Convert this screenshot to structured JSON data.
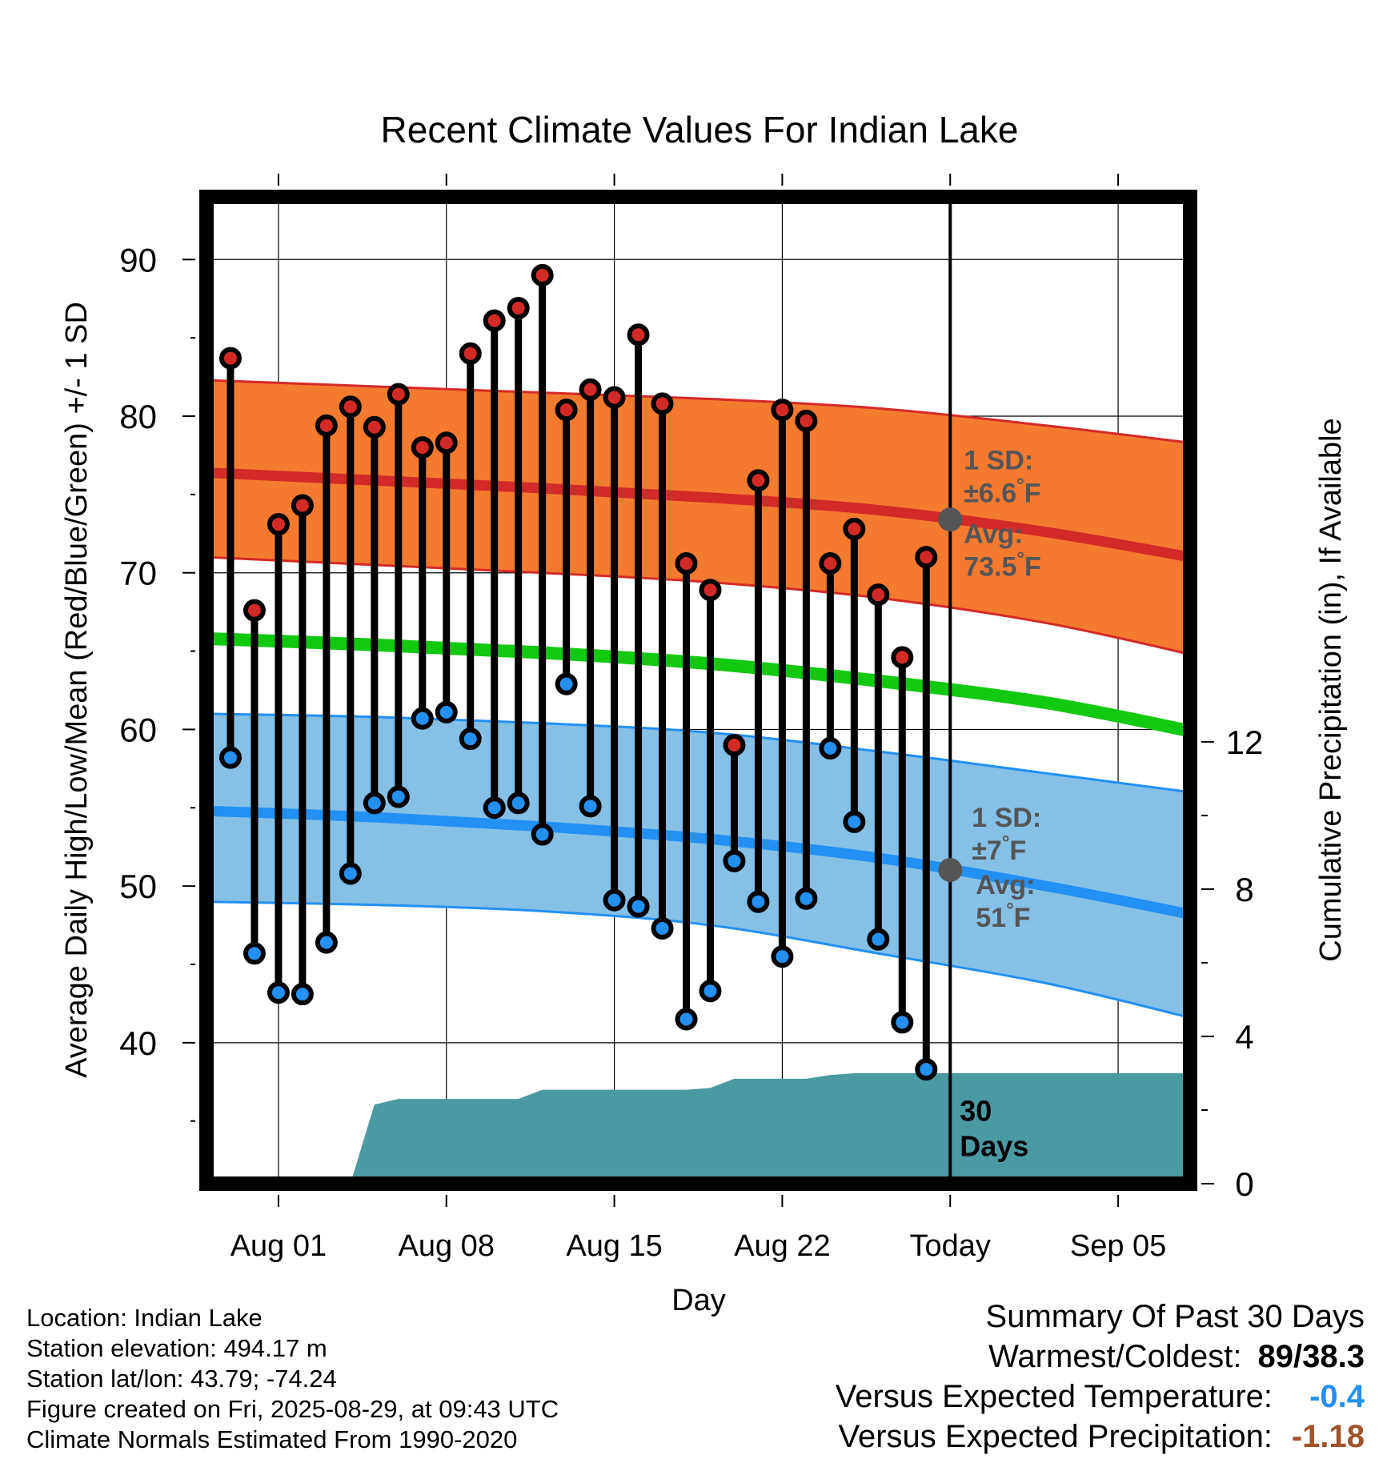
{
  "chart_data": {
    "type": "line",
    "title": "Recent Climate Values For Indian Lake",
    "xlabel": "Day",
    "ylabel": "Average Daily High/Low/Mean (Red/Blue/Green) +/- 1 SD",
    "y2label": "Cumulative Precipitation (in), If Available",
    "ylim": [
      31,
      94
    ],
    "y2lim": [
      0,
      26.8
    ],
    "xlim": [
      "2025-07-29",
      "2025-09-08"
    ],
    "yticks": [
      "40",
      "50",
      "60",
      "70",
      "80",
      "90"
    ],
    "y2ticks": [
      "0",
      "4",
      "8",
      "12"
    ],
    "xticks": [
      {
        "date": "2025-08-01",
        "label": "Aug 01"
      },
      {
        "date": "2025-08-08",
        "label": "Aug 08"
      },
      {
        "date": "2025-08-15",
        "label": "Aug 15"
      },
      {
        "date": "2025-08-22",
        "label": "Aug 22"
      },
      {
        "date": "2025-08-29",
        "label": "Today"
      },
      {
        "date": "2025-09-05",
        "label": "Sep 05"
      }
    ],
    "grid": true,
    "today": "2025-08-29",
    "dates": [
      "2025-07-30",
      "2025-07-31",
      "2025-08-01",
      "2025-08-02",
      "2025-08-03",
      "2025-08-04",
      "2025-08-05",
      "2025-08-06",
      "2025-08-07",
      "2025-08-08",
      "2025-08-09",
      "2025-08-10",
      "2025-08-11",
      "2025-08-12",
      "2025-08-13",
      "2025-08-14",
      "2025-08-15",
      "2025-08-16",
      "2025-08-17",
      "2025-08-18",
      "2025-08-19",
      "2025-08-20",
      "2025-08-21",
      "2025-08-22",
      "2025-08-23",
      "2025-08-24",
      "2025-08-25",
      "2025-08-26",
      "2025-08-27",
      "2025-08-28"
    ],
    "highs": [
      83.7,
      67.6,
      73.1,
      74.3,
      79.4,
      80.6,
      79.3,
      81.4,
      78.0,
      78.3,
      84.0,
      86.1,
      86.9,
      89.0,
      80.4,
      81.7,
      81.2,
      85.2,
      80.8,
      70.6,
      68.9,
      59.0,
      75.9,
      80.4,
      79.7,
      70.6,
      72.8,
      68.6,
      64.6,
      71.0
    ],
    "lows": [
      58.2,
      45.7,
      43.2,
      43.1,
      46.4,
      50.8,
      55.3,
      55.7,
      60.7,
      61.1,
      59.4,
      55.0,
      55.3,
      53.3,
      62.9,
      55.1,
      49.1,
      48.7,
      47.3,
      41.5,
      43.3,
      51.6,
      49.0,
      45.5,
      49.2,
      58.8,
      54.1,
      46.6,
      41.3,
      38.3
    ],
    "normals": {
      "dates": [
        "2025-07-29",
        "2025-08-05",
        "2025-08-12",
        "2025-08-19",
        "2025-08-26",
        "2025-09-02",
        "2025-09-08"
      ],
      "avg_high": [
        76.4,
        75.9,
        75.4,
        74.8,
        74.0,
        72.6,
        71.0
      ],
      "high_sd_upper": [
        82.3,
        81.9,
        81.5,
        81.1,
        80.5,
        79.4,
        78.3
      ],
      "high_sd_lower": [
        71.0,
        70.5,
        70.0,
        69.4,
        68.4,
        66.8,
        64.8
      ],
      "avg_mean": [
        65.8,
        65.4,
        64.9,
        64.2,
        63.1,
        61.7,
        59.9
      ],
      "avg_low": [
        54.8,
        54.4,
        53.8,
        53.0,
        51.8,
        50.0,
        48.2
      ],
      "low_sd_upper": [
        61.0,
        60.8,
        60.4,
        59.8,
        58.6,
        57.2,
        56.0
      ],
      "low_sd_lower": [
        49.0,
        48.8,
        48.4,
        47.5,
        45.7,
        43.8,
        41.6
      ]
    },
    "precip": {
      "dates": [
        "2025-07-29",
        "2025-08-04",
        "2025-08-05",
        "2025-08-06",
        "2025-08-07",
        "2025-08-11",
        "2025-08-12",
        "2025-08-17",
        "2025-08-18",
        "2025-08-19",
        "2025-08-20",
        "2025-08-23",
        "2025-08-24",
        "2025-08-25",
        "2025-08-28",
        "2025-09-08"
      ],
      "cum_in": [
        0,
        0,
        2.15,
        2.3,
        2.3,
        2.3,
        2.55,
        2.55,
        2.55,
        2.6,
        2.85,
        2.85,
        2.95,
        3.0,
        3.0,
        3.0
      ]
    },
    "annotations": {
      "high_sd": [
        "1 SD:",
        "±6.6",
        "°F"
      ],
      "high_avg": [
        "Avg:",
        "73.5",
        "°F"
      ],
      "low_sd": [
        "1 SD:",
        "±7",
        "°F"
      ],
      "low_avg": [
        "Avg:",
        "51",
        "°F"
      ],
      "days": [
        "30",
        "Days"
      ]
    },
    "colors": {
      "high_band": "#f47a30",
      "high_line": "#d42a27",
      "mean_line": "#12c912",
      "low_band": "#85c0e6",
      "low_line": "#2390f2",
      "precip": "#4a9aa2",
      "high_marker": "#d42a27",
      "low_marker": "#2390f2",
      "today_marker": "#555555",
      "annotation_text": "#555555"
    }
  },
  "info": {
    "location": "Location: Indian Lake",
    "elevation": "Station elevation: 494.17 m",
    "latlon": "Station lat/lon: 43.79; -74.24",
    "created": "Figure created on Fri, 2025-08-29, at 09:43 UTC",
    "normals": "Climate Normals Estimated From 1990-2020"
  },
  "summary": {
    "title": "Summary Of Past 30 Days",
    "warmest_label": "Warmest/Coldest:",
    "warmest_value": "89/38.3",
    "temp_label": "Versus Expected Temperature:",
    "temp_value": "-0.4",
    "temp_color": "#2390f2",
    "precip_label": "Versus Expected Precipitation:",
    "precip_value": "-1.18",
    "precip_color": "#a0522d"
  }
}
